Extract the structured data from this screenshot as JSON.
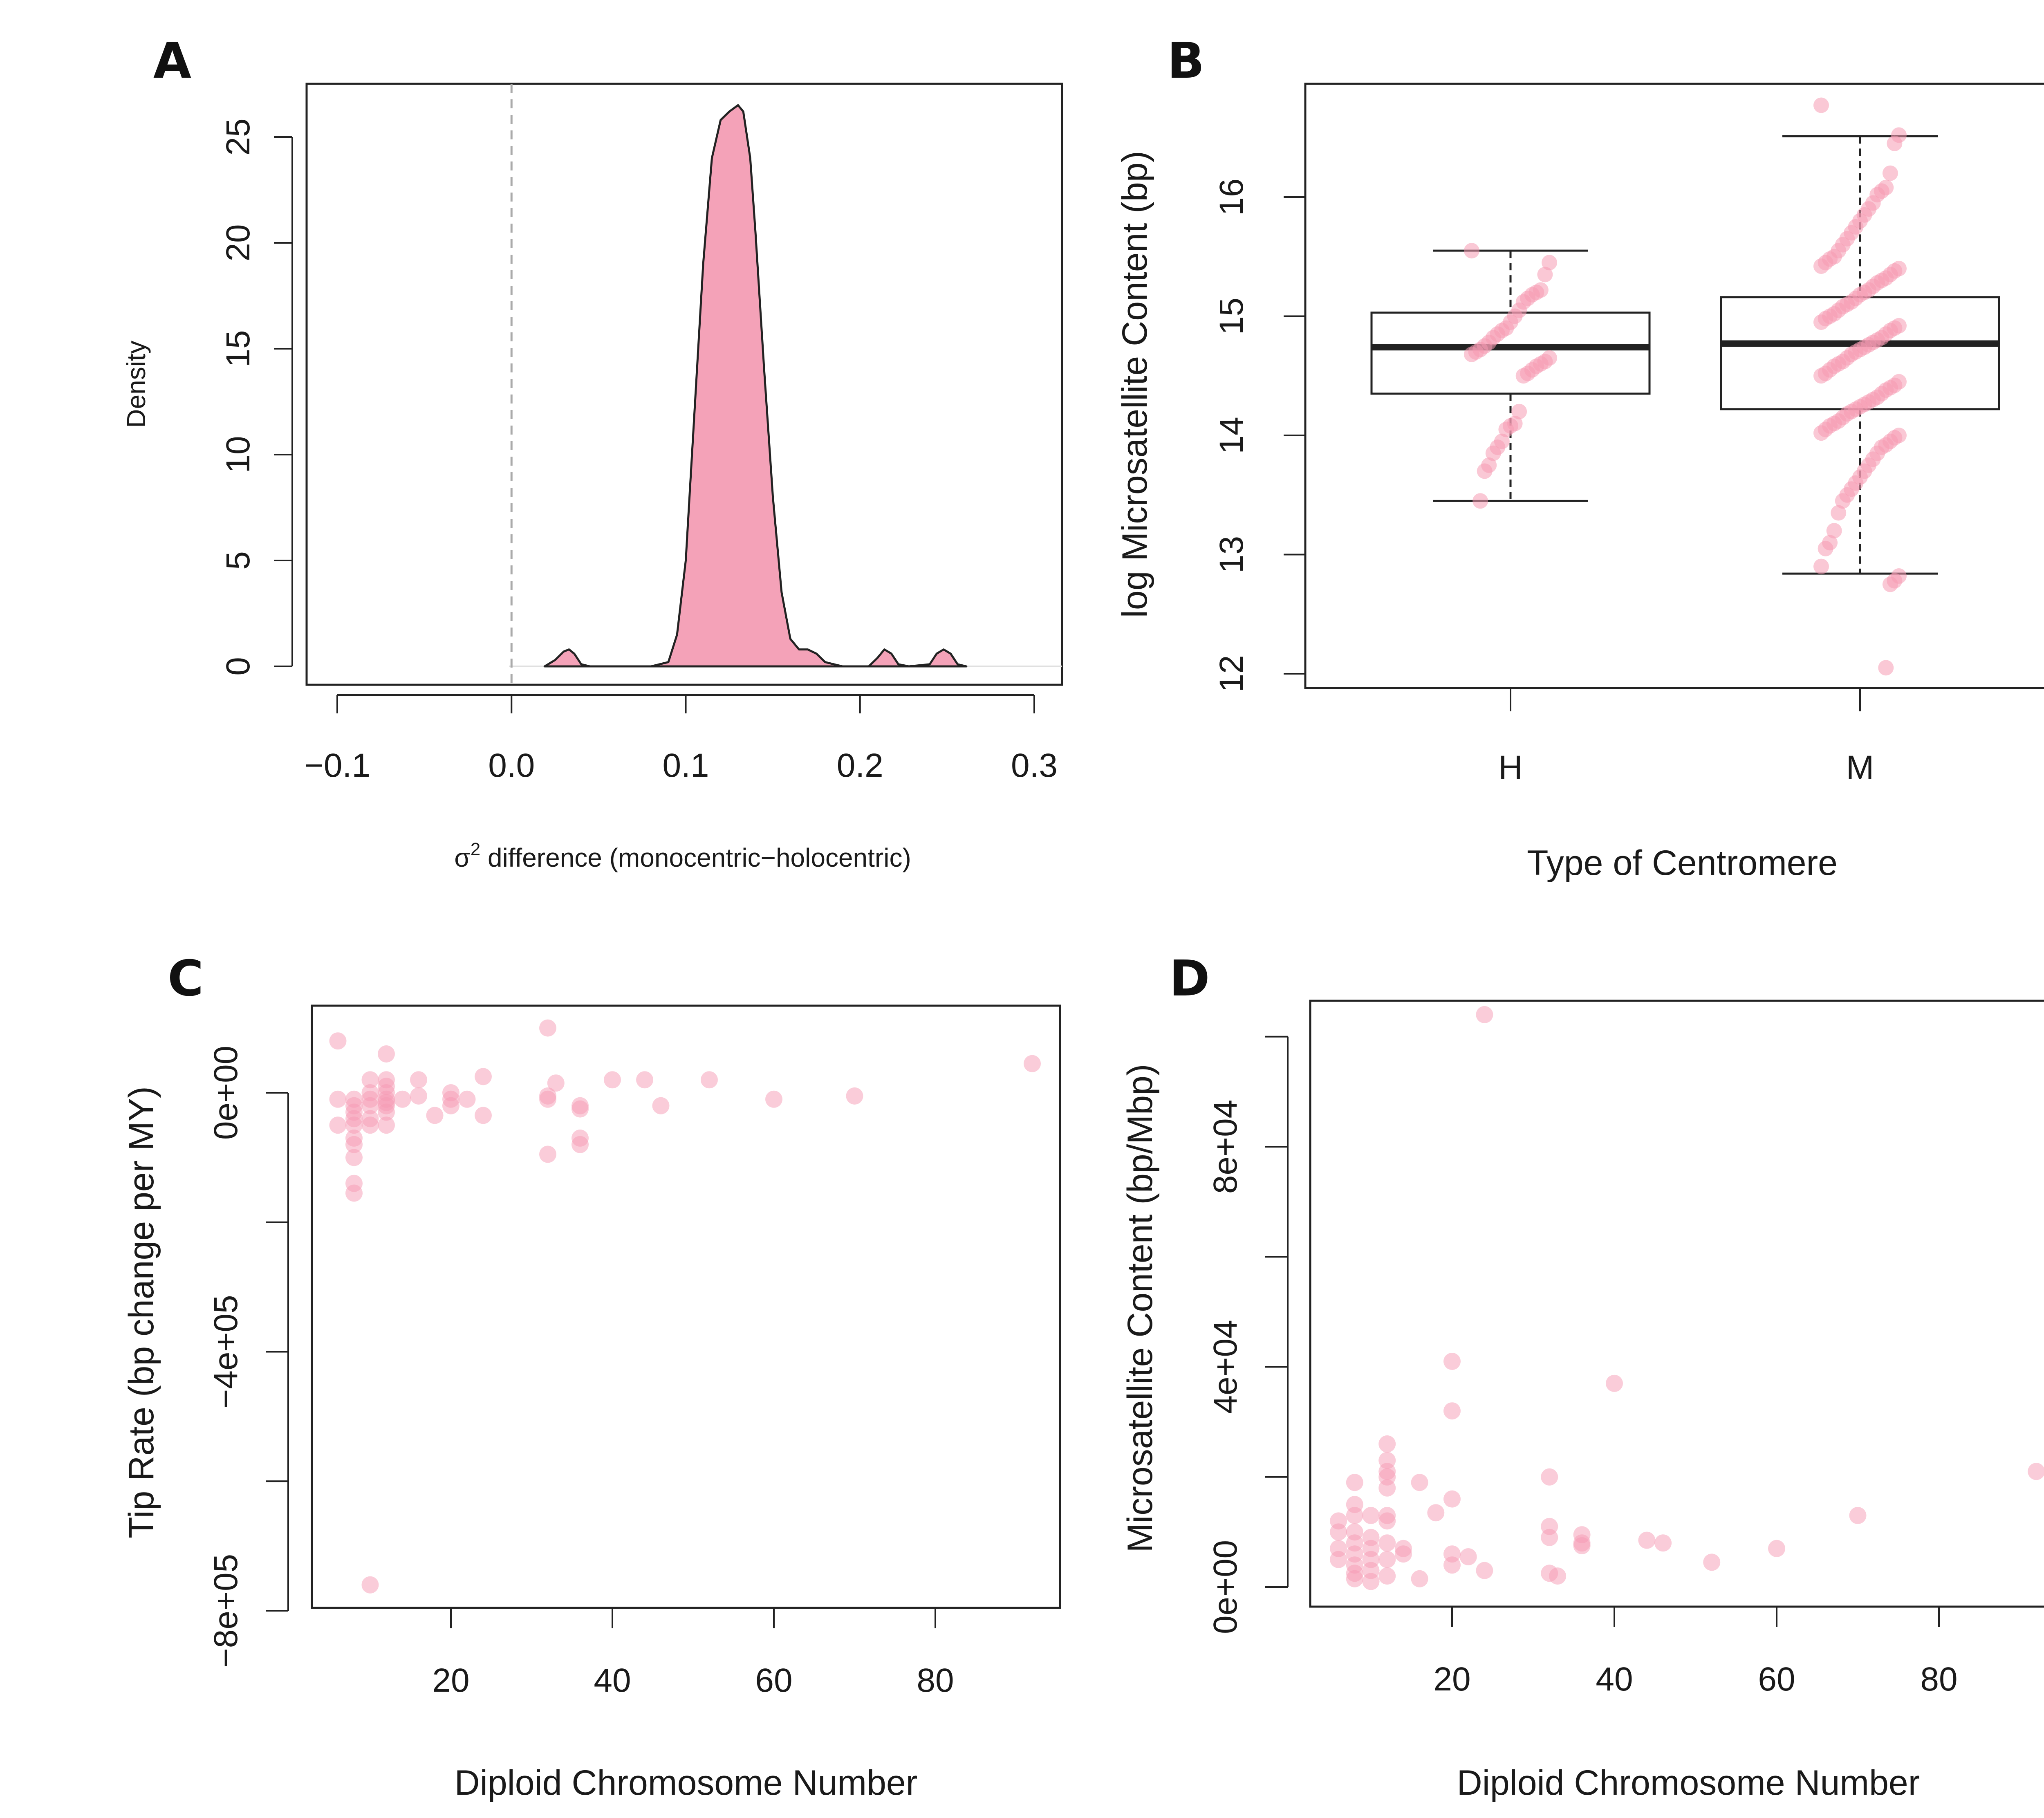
{
  "colors": {
    "accent": "#f4a2b8",
    "stroke": "#222222",
    "point": "#f59ab3"
  },
  "chart_data": [
    {
      "panel": "A",
      "type": "area",
      "xlabel_prefix": "σ",
      "xlabel_sup": "2",
      "xlabel_rest": " difference (monocentric−holocentric)",
      "ylabel": "Density",
      "xlim": [
        -0.1,
        0.3
      ],
      "ylim": [
        0,
        27
      ],
      "xticks": [
        "−0.1",
        "0.0",
        "0.1",
        "0.2",
        "0.3"
      ],
      "xtick_values": [
        -0.1,
        0.0,
        0.1,
        0.2,
        0.3
      ],
      "yticks": [
        "0",
        "5",
        "10",
        "15",
        "20",
        "25"
      ],
      "ytick_values": [
        0,
        5,
        10,
        15,
        20,
        25
      ],
      "reference_line_x": 0.0,
      "x": [
        0.019,
        0.025,
        0.03,
        0.033,
        0.036,
        0.04,
        0.045,
        0.06,
        0.08,
        0.09,
        0.095,
        0.1,
        0.105,
        0.11,
        0.115,
        0.12,
        0.125,
        0.13,
        0.133,
        0.137,
        0.14,
        0.145,
        0.15,
        0.155,
        0.16,
        0.165,
        0.17,
        0.175,
        0.18,
        0.19,
        0.205,
        0.21,
        0.214,
        0.218,
        0.222,
        0.228,
        0.24,
        0.244,
        0.248,
        0.252,
        0.256,
        0.261
      ],
      "values": [
        0.0,
        0.3,
        0.7,
        0.8,
        0.6,
        0.1,
        0.0,
        0.0,
        0.0,
        0.2,
        1.5,
        5.0,
        12.0,
        19.0,
        24.0,
        25.8,
        26.2,
        26.5,
        26.2,
        24.0,
        20.5,
        14.0,
        8.0,
        3.5,
        1.3,
        0.8,
        0.8,
        0.6,
        0.2,
        0.0,
        0.0,
        0.4,
        0.8,
        0.6,
        0.1,
        0.0,
        0.1,
        0.6,
        0.8,
        0.6,
        0.1,
        0.0
      ]
    },
    {
      "panel": "B",
      "type": "box",
      "xlabel": "Type of Centromere",
      "ylabel": "log Microsatellite Content (bp)",
      "ylim": [
        11.95,
        16.95
      ],
      "yticks": [
        "12",
        "13",
        "14",
        "15",
        "16"
      ],
      "ytick_values": [
        12,
        13,
        14,
        15,
        16
      ],
      "categories": [
        "H",
        "M"
      ],
      "boxes": [
        {
          "name": "H",
          "whisker_low": 13.45,
          "q1": 14.35,
          "median": 14.74,
          "q3": 15.03,
          "whisker_high": 15.55
        },
        {
          "name": "M",
          "whisker_low": 12.84,
          "q1": 14.22,
          "median": 14.77,
          "q3": 15.16,
          "whisker_high": 16.51
        }
      ],
      "points": [
        {
          "group": "H",
          "values": [
            15.55,
            15.45,
            15.35,
            15.22,
            15.2,
            15.18,
            15.15,
            15.12,
            15.05,
            15.0,
            14.95,
            14.9,
            14.88,
            14.85,
            14.82,
            14.78,
            14.75,
            14.72,
            14.7,
            14.68,
            14.65,
            14.62,
            14.6,
            14.58,
            14.55,
            14.52,
            14.5,
            14.2,
            14.1,
            14.08,
            14.05,
            13.95,
            13.9,
            13.85,
            13.75,
            13.7,
            13.45
          ]
        },
        {
          "group": "M",
          "values": [
            16.77,
            16.52,
            16.45,
            16.2,
            16.08,
            16.05,
            16.02,
            15.95,
            15.9,
            15.85,
            15.8,
            15.75,
            15.7,
            15.65,
            15.6,
            15.55,
            15.5,
            15.48,
            15.45,
            15.42,
            15.4,
            15.38,
            15.35,
            15.32,
            15.3,
            15.28,
            15.25,
            15.22,
            15.2,
            15.18,
            15.15,
            15.12,
            15.1,
            15.08,
            15.05,
            15.02,
            15.0,
            14.98,
            14.95,
            14.92,
            14.9,
            14.88,
            14.85,
            14.82,
            14.8,
            14.78,
            14.76,
            14.74,
            14.72,
            14.7,
            14.68,
            14.65,
            14.62,
            14.6,
            14.58,
            14.55,
            14.52,
            14.5,
            14.45,
            14.42,
            14.4,
            14.38,
            14.35,
            14.32,
            14.3,
            14.28,
            14.26,
            14.24,
            14.22,
            14.2,
            14.18,
            14.15,
            14.12,
            14.1,
            14.08,
            14.05,
            14.02,
            14.0,
            13.98,
            13.95,
            13.92,
            13.9,
            13.85,
            13.8,
            13.75,
            13.7,
            13.65,
            13.6,
            13.55,
            13.5,
            13.45,
            13.35,
            13.2,
            13.1,
            13.05,
            12.9,
            12.82,
            12.78,
            12.75,
            12.05
          ]
        }
      ]
    },
    {
      "panel": "C",
      "type": "scatter",
      "xlabel": "Diploid Chromosome Number",
      "ylabel": "Tip Rate (bp change per MY)",
      "xlim": [
        2,
        95
      ],
      "ylim": [
        -800000,
        140000
      ],
      "xticks": [
        "20",
        "40",
        "60",
        "80"
      ],
      "xtick_values": [
        20,
        40,
        60,
        80
      ],
      "yticks": [
        "−8e+05",
        "−4e+05",
        "0e+00"
      ],
      "ytick_values": [
        -800000,
        -400000,
        0
      ],
      "minor_ytick_values": [
        -600000,
        -200000
      ],
      "x": [
        6,
        6,
        6,
        8,
        8,
        8,
        8,
        8,
        8,
        8,
        8,
        8,
        8,
        10,
        10,
        10,
        10,
        10,
        10,
        10,
        12,
        12,
        12,
        12,
        12,
        12,
        12,
        12,
        12,
        14,
        16,
        16,
        18,
        20,
        20,
        20,
        22,
        24,
        24,
        32,
        32,
        32,
        32,
        33,
        36,
        36,
        36,
        36,
        40,
        44,
        46,
        52,
        60,
        70,
        92
      ],
      "y": [
        80000,
        -10000,
        -50000,
        -10000,
        -20000,
        -30000,
        -40000,
        -50000,
        -70000,
        -80000,
        -100000,
        -140000,
        -155000,
        20000,
        0,
        -10000,
        -20000,
        -40000,
        -50000,
        -760000,
        60000,
        20000,
        10000,
        0,
        -10000,
        -15000,
        -20000,
        -30000,
        -50000,
        -10000,
        20000,
        -5000,
        -35000,
        0,
        -10000,
        -20000,
        -10000,
        25000,
        -35000,
        100000,
        -5000,
        -10000,
        -95000,
        15000,
        -20000,
        -25000,
        -70000,
        -80000,
        20000,
        20000,
        -20000,
        20000,
        -10000,
        -5000,
        45000
      ]
    },
    {
      "panel": "D",
      "type": "scatter",
      "xlabel": "Diploid Chromosome Number",
      "ylabel": "Microsatellite Content (bp/Mbp)",
      "xlim": [
        2,
        95
      ],
      "ylim": [
        -4000,
        107000
      ],
      "xticks": [
        "20",
        "40",
        "60",
        "80"
      ],
      "xtick_values": [
        20,
        40,
        60,
        80
      ],
      "yticks": [
        "0e+00",
        "4e+04",
        "8e+04"
      ],
      "ytick_values": [
        0,
        40000,
        80000
      ],
      "minor_ytick_values": [
        20000,
        60000,
        100000
      ],
      "x": [
        6,
        6,
        6,
        6,
        8,
        8,
        8,
        8,
        8,
        8,
        8,
        8,
        8,
        10,
        10,
        10,
        10,
        10,
        10,
        12,
        12,
        12,
        12,
        12,
        12,
        12,
        12,
        12,
        12,
        14,
        14,
        16,
        16,
        18,
        20,
        20,
        20,
        20,
        20,
        22,
        24,
        24,
        32,
        32,
        32,
        32,
        33,
        36,
        36,
        36,
        40,
        44,
        46,
        52,
        60,
        70,
        92
      ],
      "y": [
        12000,
        10000,
        7000,
        5000,
        19000,
        15000,
        13000,
        10000,
        8000,
        6000,
        4000,
        2500,
        1500,
        13000,
        9000,
        7000,
        5000,
        3000,
        1000,
        26000,
        23000,
        21000,
        20000,
        18000,
        13000,
        12000,
        8000,
        5000,
        2000,
        7000,
        6000,
        19000,
        1500,
        13500,
        41000,
        32000,
        16000,
        6000,
        4000,
        5500,
        104000,
        3000,
        20000,
        11000,
        9000,
        2500,
        2000,
        9500,
        8000,
        7500,
        37000,
        8500,
        8000,
        4500,
        7000,
        13000,
        21000
      ]
    }
  ]
}
